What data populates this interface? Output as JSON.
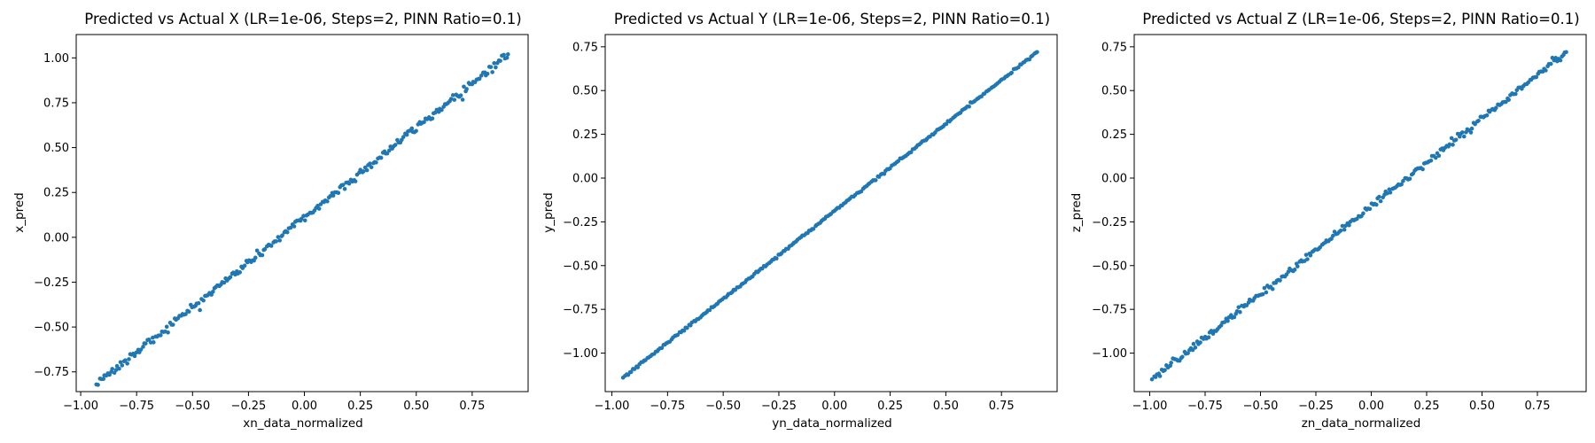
{
  "chart_data": [
    {
      "type": "scatter",
      "title": "Predicted vs Actual X (LR=1e-06, Steps=2, PINN Ratio=0.1)",
      "xlabel": "xn_data_normalized",
      "ylabel": "x_pred",
      "xlim": [
        -1.02,
        1.0
      ],
      "ylim": [
        -0.86,
        1.13
      ],
      "xticks": [
        -1.0,
        -0.75,
        -0.5,
        -0.25,
        0.0,
        0.25,
        0.5,
        0.75
      ],
      "xtick_labels": [
        "−1.00",
        "−0.75",
        "−0.50",
        "−0.25",
        "0.00",
        "0.25",
        "0.50",
        "0.75"
      ],
      "yticks": [
        -0.75,
        -0.5,
        -0.25,
        0.0,
        0.25,
        0.5,
        0.75,
        1.0
      ],
      "ytick_labels": [
        "−0.75",
        "−0.50",
        "−0.25",
        "0.00",
        "0.25",
        "0.50",
        "0.75",
        "1.00"
      ],
      "grid": false,
      "color": "#1f77b4",
      "fit": {
        "slope": 1.0,
        "intercept": 0.11
      },
      "x_range": [
        -0.93,
        0.91
      ],
      "noise": 0.012,
      "count": 260,
      "series": [
        {
          "x": [
            -0.93,
            -0.75,
            -0.5,
            -0.25,
            0.0,
            0.25,
            0.5,
            0.75,
            0.91
          ],
          "y": [
            -0.81,
            -0.64,
            -0.39,
            -0.14,
            0.11,
            0.36,
            0.61,
            0.86,
            1.03
          ]
        }
      ]
    },
    {
      "type": "scatter",
      "title": "Predicted vs Actual Y (LR=1e-06, Steps=2, PINN Ratio=0.1)",
      "xlabel": "yn_data_normalized",
      "ylabel": "y_pred",
      "xlim": [
        -1.03,
        1.0
      ],
      "ylim": [
        -1.22,
        0.82
      ],
      "xticks": [
        -1.0,
        -0.75,
        -0.5,
        -0.25,
        0.0,
        0.25,
        0.5,
        0.75
      ],
      "xtick_labels": [
        "−1.00",
        "−0.75",
        "−0.50",
        "−0.25",
        "0.00",
        "0.25",
        "0.50",
        "0.75"
      ],
      "yticks": [
        -1.0,
        -0.75,
        -0.5,
        -0.25,
        0.0,
        0.25,
        0.5,
        0.75
      ],
      "ytick_labels": [
        "−1.00",
        "−0.75",
        "−0.50",
        "−0.25",
        "0.00",
        "0.25",
        "0.50",
        "0.75"
      ],
      "grid": false,
      "color": "#1f77b4",
      "fit": {
        "slope": 1.0,
        "intercept": -0.19
      },
      "x_range": [
        -0.95,
        0.91
      ],
      "noise": 0.003,
      "count": 260,
      "series": [
        {
          "x": [
            -0.95,
            -0.75,
            -0.5,
            -0.25,
            0.0,
            0.25,
            0.5,
            0.75,
            0.91
          ],
          "y": [
            -1.13,
            -0.94,
            -0.69,
            -0.44,
            -0.19,
            0.06,
            0.31,
            0.56,
            0.72
          ]
        }
      ]
    },
    {
      "type": "scatter",
      "title": "Predicted vs Actual Z (LR=1e-06, Steps=2, PINN Ratio=0.1)",
      "xlabel": "zn_data_normalized",
      "ylabel": "z_pred",
      "xlim": [
        -1.07,
        0.97
      ],
      "ylim": [
        -1.22,
        0.82
      ],
      "xticks": [
        -1.0,
        -0.75,
        -0.5,
        -0.25,
        0.0,
        0.25,
        0.5,
        0.75
      ],
      "xtick_labels": [
        "−1.00",
        "−0.75",
        "−0.50",
        "−0.25",
        "0.00",
        "0.25",
        "0.50",
        "0.75"
      ],
      "yticks": [
        -1.0,
        -0.75,
        -0.5,
        -0.25,
        0.0,
        0.25,
        0.5,
        0.75
      ],
      "ytick_labels": [
        "−1.00",
        "−0.75",
        "−0.50",
        "−0.25",
        "0.00",
        "0.25",
        "0.50",
        "0.75"
      ],
      "grid": false,
      "color": "#1f77b4",
      "fit": {
        "slope": 1.0,
        "intercept": -0.16
      },
      "x_range": [
        -0.99,
        0.88
      ],
      "noise": 0.01,
      "count": 260,
      "series": [
        {
          "x": [
            -0.99,
            -0.75,
            -0.5,
            -0.25,
            0.0,
            0.25,
            0.5,
            0.75,
            0.88
          ],
          "y": [
            -1.13,
            -0.91,
            -0.66,
            -0.41,
            -0.16,
            0.09,
            0.34,
            0.59,
            0.71
          ]
        }
      ]
    }
  ]
}
